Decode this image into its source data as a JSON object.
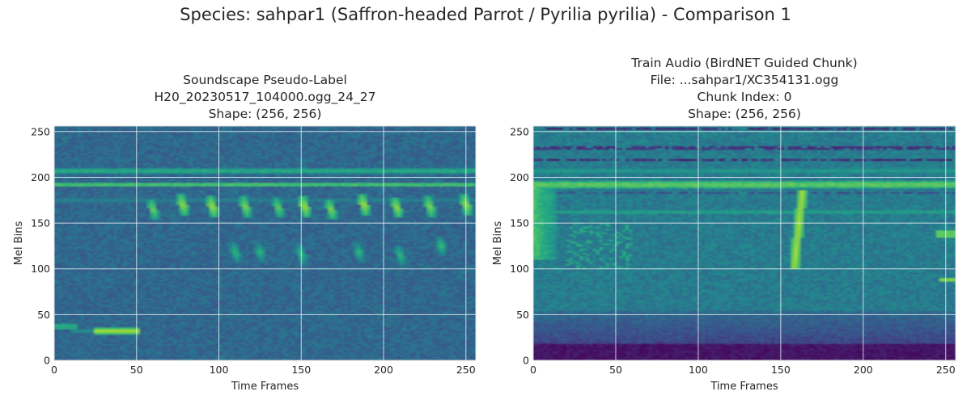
{
  "figure": {
    "suptitle": "Species: sahpar1 (Saffron-headed Parrot / Pyrilia pyrilia) - Comparison 1"
  },
  "chart_data": [
    {
      "type": "heatmap",
      "title_lines": [
        "Soundscape Pseudo-Label",
        "H20_20230517_104000.ogg_24_27",
        "Shape: (256, 256)"
      ],
      "xlabel": "Time Frames",
      "ylabel": "Mel Bins",
      "xlim": [
        0,
        256
      ],
      "ylim": [
        0,
        256
      ],
      "xticks": [
        0,
        50,
        100,
        150,
        200,
        250
      ],
      "yticks": [
        0,
        50,
        100,
        150,
        200,
        250
      ],
      "grid": true,
      "colormap": "viridis",
      "shape": [
        256,
        256
      ],
      "features": {
        "base_level": 0.34,
        "bands": [
          {
            "mel": 207,
            "width": 4,
            "level": 0.62
          },
          {
            "mel": 192,
            "width": 3,
            "level": 0.72
          },
          {
            "mel": 175,
            "width": 4,
            "level": 0.45
          }
        ],
        "bright_events": [
          {
            "time": 60,
            "mel": 165,
            "level": 0.82
          },
          {
            "time": 78,
            "mel": 170,
            "level": 0.88
          },
          {
            "time": 96,
            "mel": 168,
            "level": 0.9
          },
          {
            "time": 116,
            "mel": 168,
            "level": 0.85
          },
          {
            "time": 136,
            "mel": 167,
            "level": 0.8
          },
          {
            "time": 152,
            "mel": 168,
            "level": 0.9
          },
          {
            "time": 168,
            "mel": 165,
            "level": 0.85
          },
          {
            "time": 188,
            "mel": 170,
            "level": 0.9
          },
          {
            "time": 208,
            "mel": 167,
            "level": 0.88
          },
          {
            "time": 228,
            "mel": 168,
            "level": 0.85
          },
          {
            "time": 250,
            "mel": 170,
            "level": 0.88
          },
          {
            "time": 110,
            "mel": 118,
            "level": 0.7
          },
          {
            "time": 125,
            "mel": 118,
            "level": 0.68
          },
          {
            "time": 150,
            "mel": 116,
            "level": 0.7
          },
          {
            "time": 185,
            "mel": 118,
            "level": 0.68
          },
          {
            "time": 210,
            "mel": 115,
            "level": 0.7
          },
          {
            "time": 235,
            "mel": 125,
            "level": 0.7
          }
        ],
        "horizontal_streak": {
          "time_start": 25,
          "time_end": 52,
          "mel": 32,
          "level": 0.92
        }
      }
    },
    {
      "type": "heatmap",
      "title_lines": [
        "Train Audio (BirdNET Guided Chunk)",
        "File: ...sahpar1/XC354131.ogg",
        "Chunk Index: 0",
        "Shape: (256, 256)"
      ],
      "xlabel": "Time Frames",
      "ylabel": "Mel Bins",
      "xlim": [
        0,
        256
      ],
      "ylim": [
        0,
        256
      ],
      "xticks": [
        0,
        50,
        100,
        150,
        200,
        250
      ],
      "yticks": [
        0,
        50,
        100,
        150,
        200,
        250
      ],
      "grid": true,
      "colormap": "viridis",
      "shape": [
        256,
        256
      ],
      "features": {
        "base_level": 0.42,
        "low_band": {
          "mel_max": 18,
          "level": 0.02
        },
        "low_mid_band": {
          "mel_min": 18,
          "mel_max": 55,
          "level": 0.16
        },
        "bands": [
          {
            "mel": 192,
            "width": 4,
            "level": 0.78
          },
          {
            "mel": 207,
            "width": 3,
            "level": 0.55
          },
          {
            "mel": 162,
            "width": 3,
            "level": 0.58
          }
        ],
        "dark_lines": [
          {
            "mel": 253,
            "level": 0.05
          },
          {
            "mel": 232,
            "level": 0.1
          },
          {
            "mel": 219,
            "level": 0.06
          },
          {
            "mel": 183,
            "level": 0.2
          }
        ],
        "vertical_sweep": {
          "time": 160,
          "mel_min": 100,
          "mel_max": 185,
          "level": 0.88
        },
        "left_bright": {
          "time_max": 15,
          "mel_min": 110,
          "mel_max": 190,
          "level": 0.72
        },
        "right_blip": {
          "time": 252,
          "mel": 88,
          "level": 0.8
        }
      }
    }
  ]
}
